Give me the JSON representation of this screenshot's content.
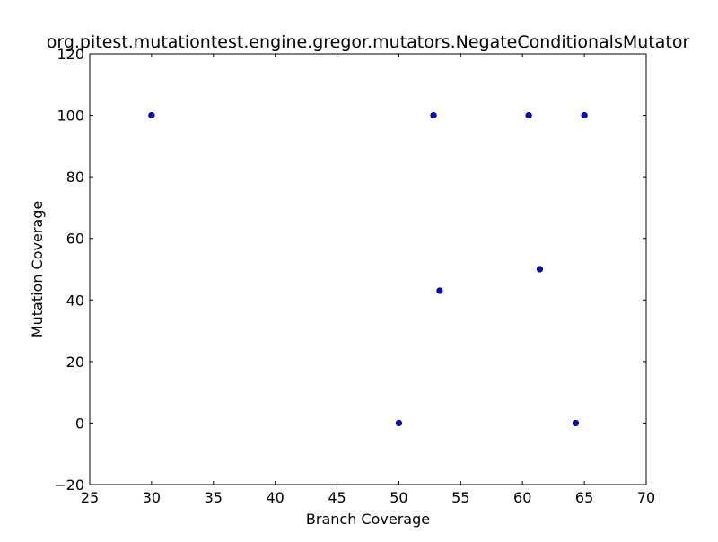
{
  "chart_data": {
    "type": "scatter",
    "title": "org.pitest.mutationtest.engine.gregor.mutators.NegateConditionalsMutator",
    "xlabel": "Branch Coverage",
    "ylabel": "Mutation Coverage",
    "xlim": [
      25,
      70
    ],
    "ylim": [
      -20,
      120
    ],
    "xticks": [
      "25",
      "30",
      "35",
      "40",
      "45",
      "50",
      "55",
      "60",
      "65",
      "70"
    ],
    "yticks": [
      "−20",
      "0",
      "20",
      "40",
      "60",
      "80",
      "100",
      "120"
    ],
    "grid": false,
    "points": [
      {
        "x": 30,
        "y": 100
      },
      {
        "x": 52.8,
        "y": 100
      },
      {
        "x": 60.5,
        "y": 100
      },
      {
        "x": 65,
        "y": 100
      },
      {
        "x": 61.4,
        "y": 50
      },
      {
        "x": 53.3,
        "y": 43
      },
      {
        "x": 50,
        "y": 0
      },
      {
        "x": 64.3,
        "y": 0
      }
    ],
    "marker_color": "#0000ff",
    "marker_edge_color": "#000000"
  }
}
